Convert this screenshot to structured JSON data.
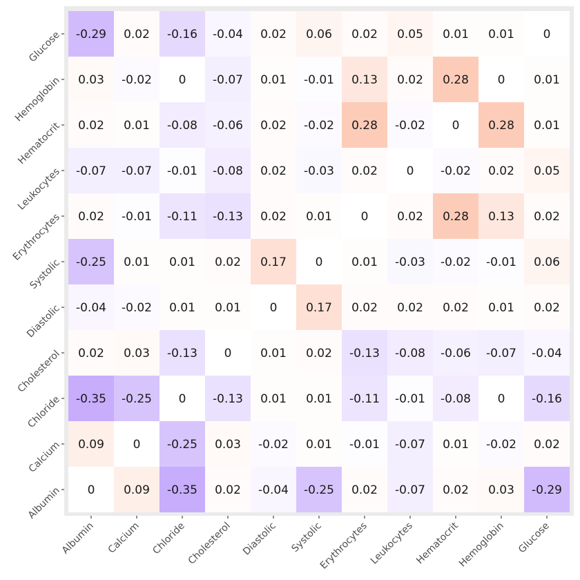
{
  "chart_data": {
    "type": "heatmap",
    "title": "",
    "xlabel": "",
    "ylabel": "",
    "x_categories": [
      "Albumin",
      "Calcium",
      "Chloride",
      "Cholesterol",
      "Diastolic",
      "Systolic",
      "Erythrocytes",
      "Leukocytes",
      "Hematocrit",
      "Hemoglobin",
      "Glucose"
    ],
    "y_categories_top_to_bottom": [
      "Glucose",
      "Hemoglobin",
      "Hematocrit",
      "Leukocytes",
      "Erythrocytes",
      "Systolic",
      "Diastolic",
      "Cholesterol",
      "Chloride",
      "Calcium",
      "Albumin"
    ],
    "values": [
      [
        -0.29,
        0.02,
        -0.16,
        -0.04,
        0.02,
        0.06,
        0.02,
        0.05,
        0.01,
        0.01,
        0
      ],
      [
        0.03,
        -0.02,
        0,
        -0.07,
        0.01,
        -0.01,
        0.13,
        0.02,
        0.28,
        0,
        0.01
      ],
      [
        0.02,
        0.01,
        -0.08,
        -0.06,
        0.02,
        -0.02,
        0.28,
        -0.02,
        0,
        0.28,
        0.01
      ],
      [
        -0.07,
        -0.07,
        -0.01,
        -0.08,
        0.02,
        -0.03,
        0.02,
        0,
        -0.02,
        0.02,
        0.05
      ],
      [
        0.02,
        -0.01,
        -0.11,
        -0.13,
        0.02,
        0.01,
        0,
        0.02,
        0.28,
        0.13,
        0.02
      ],
      [
        -0.25,
        0.01,
        0.01,
        0.02,
        0.17,
        0,
        0.01,
        -0.03,
        -0.02,
        -0.01,
        0.06
      ],
      [
        -0.04,
        -0.02,
        0.01,
        0.01,
        0,
        0.17,
        0.02,
        0.02,
        0.02,
        0.01,
        0.02
      ],
      [
        0.02,
        0.03,
        -0.13,
        0,
        0.01,
        0.02,
        -0.13,
        -0.08,
        -0.06,
        -0.07,
        -0.04
      ],
      [
        -0.35,
        -0.25,
        0,
        -0.13,
        0.01,
        0.01,
        -0.11,
        -0.01,
        -0.08,
        0,
        -0.16
      ],
      [
        0.09,
        0,
        -0.25,
        0.03,
        -0.02,
        0.01,
        -0.01,
        -0.07,
        0.01,
        -0.02,
        0.02
      ],
      [
        0,
        0.09,
        -0.35,
        0.02,
        -0.04,
        -0.25,
        0.02,
        -0.07,
        0.02,
        0.03,
        -0.29
      ]
    ],
    "color_scale": {
      "negative": "#c7adfc",
      "zero": "#ffffff",
      "positive": "#fcbfa6",
      "limit": 0.35
    },
    "panel_background": "#ebebeb",
    "legend": "none"
  }
}
